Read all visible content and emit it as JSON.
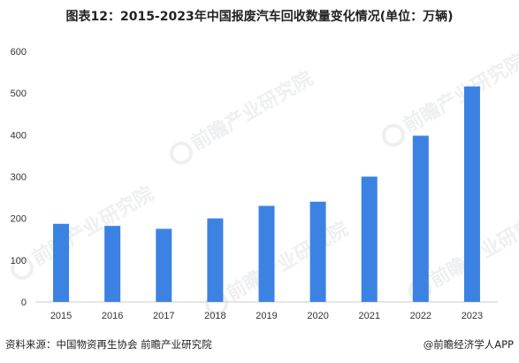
{
  "title": "图表12：2015-2023年中国报废汽车回收数量变化情况(单位：万辆)",
  "source": "资料来源：中国物资再生协会 前瞻产业研究院",
  "credit": "@前瞻经济学人APP",
  "watermark": "前瞻产业研究院",
  "colors": {
    "bar": "#3c82e2",
    "axis": "#cccccc",
    "grid": "#e6e6e6",
    "text": "#333333"
  },
  "chart_data": {
    "type": "bar",
    "title": "图表12：2015-2023年中国报废汽车回收数量变化情况(单位：万辆)",
    "categories": [
      "2015",
      "2016",
      "2017",
      "2018",
      "2019",
      "2020",
      "2021",
      "2022",
      "2023"
    ],
    "values": [
      187,
      182,
      175,
      200,
      230,
      240,
      300,
      398,
      516
    ],
    "y_ticks": [
      "0",
      "100",
      "200",
      "300",
      "400",
      "500",
      "600"
    ],
    "ylim": [
      0,
      600
    ],
    "xlabel": "",
    "ylabel": "",
    "grid": false,
    "legend": "none"
  }
}
